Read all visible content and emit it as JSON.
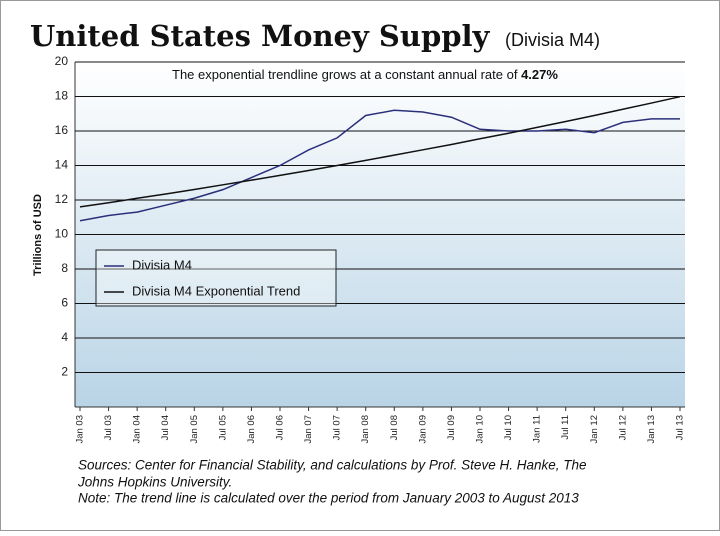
{
  "chart_data": {
    "type": "line",
    "title": "United States Money Supply",
    "subtitle": "(Divisia M4)",
    "annotation": "The exponential trendline grows at a constant annual rate of",
    "annotation_rate": "4.27%",
    "y_label": "Trillions of USD",
    "categories": [
      "Jan 03",
      "Jul 03",
      "Jan 04",
      "Jul 04",
      "Jan 05",
      "Jul 05",
      "Jan 06",
      "Jul 06",
      "Jan 07",
      "Jul 07",
      "Jan 08",
      "Jul 08",
      "Jan 09",
      "Jul 09",
      "Jan 10",
      "Jul 10",
      "Jan 11",
      "Jul 11",
      "Jan 12",
      "Jul 12",
      "Jan 13",
      "Jul 13"
    ],
    "series": [
      {
        "name": "Divisia M4",
        "color": "#2b2f7a",
        "values": [
          10.8,
          11.1,
          11.3,
          11.7,
          12.1,
          12.6,
          13.3,
          14.0,
          14.9,
          15.6,
          16.9,
          17.2,
          17.1,
          16.8,
          16.1,
          16.0,
          16.0,
          16.1,
          15.9,
          16.5,
          16.7,
          16.7
        ]
      },
      {
        "name": "Divisia M4 Exponential Trend",
        "color": "#111111",
        "values": [
          11.6,
          11.84,
          12.1,
          12.35,
          12.61,
          12.88,
          13.15,
          13.43,
          13.71,
          14.0,
          14.3,
          14.6,
          14.91,
          15.22,
          15.55,
          15.87,
          16.21,
          16.55,
          16.9,
          17.26,
          17.62,
          17.99
        ]
      }
    ],
    "ylim": [
      0,
      20
    ],
    "yticks": [
      2,
      4,
      6,
      8,
      10,
      12,
      14,
      16,
      18,
      20
    ],
    "grid": true,
    "sources": [
      "Sources: Center for Financial Stability, and calculations by Prof. Steve H. Hanke, The",
      "Johns Hopkins University.",
      "Note: The trend line is calculated over the period from January 2003 to August 2013"
    ]
  }
}
